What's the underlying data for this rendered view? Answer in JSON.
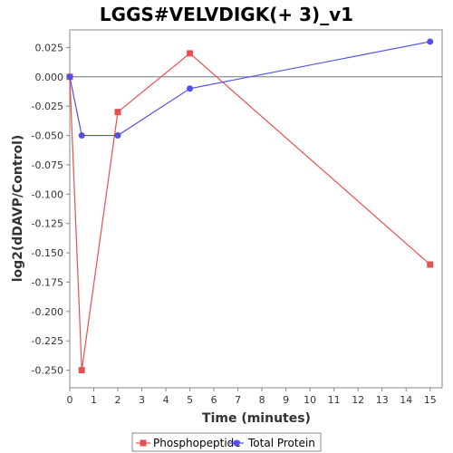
{
  "chart_data": {
    "type": "line",
    "title": "LGGS#VELVDIGK(+ 3)_v1",
    "xlabel": "Time (minutes)",
    "ylabel": "log2(dDAVP/Control)",
    "xlim": [
      0,
      15.5
    ],
    "ylim": [
      -0.265,
      0.04
    ],
    "x_ticks": [
      0,
      1,
      2,
      3,
      4,
      5,
      6,
      7,
      8,
      9,
      10,
      11,
      12,
      13,
      14,
      15
    ],
    "y_ticks": [
      0.025,
      0.0,
      -0.025,
      -0.05,
      -0.075,
      -0.1,
      -0.125,
      -0.15,
      -0.175,
      -0.2,
      -0.225,
      -0.25
    ],
    "y_tick_labels": [
      "0.025",
      "0.000",
      "-0.025",
      "-0.050",
      "-0.075",
      "-0.100",
      "-0.125",
      "-0.150",
      "-0.175",
      "-0.200",
      "-0.225",
      "-0.250"
    ],
    "reference_line_y": 0,
    "legend_position": "bottom",
    "series": [
      {
        "name": "Phosphopeptide",
        "color": "#e85050",
        "marker": "square",
        "x": [
          0,
          0.5,
          2,
          5,
          15
        ],
        "y": [
          0.0,
          -0.25,
          -0.03,
          0.02,
          -0.16
        ]
      },
      {
        "name": "Total Protein",
        "color": "#5050e8",
        "marker": "circle",
        "x": [
          0,
          0.5,
          2,
          5,
          15
        ],
        "y": [
          0.0,
          -0.05,
          -0.05,
          -0.01,
          0.03
        ]
      }
    ]
  }
}
